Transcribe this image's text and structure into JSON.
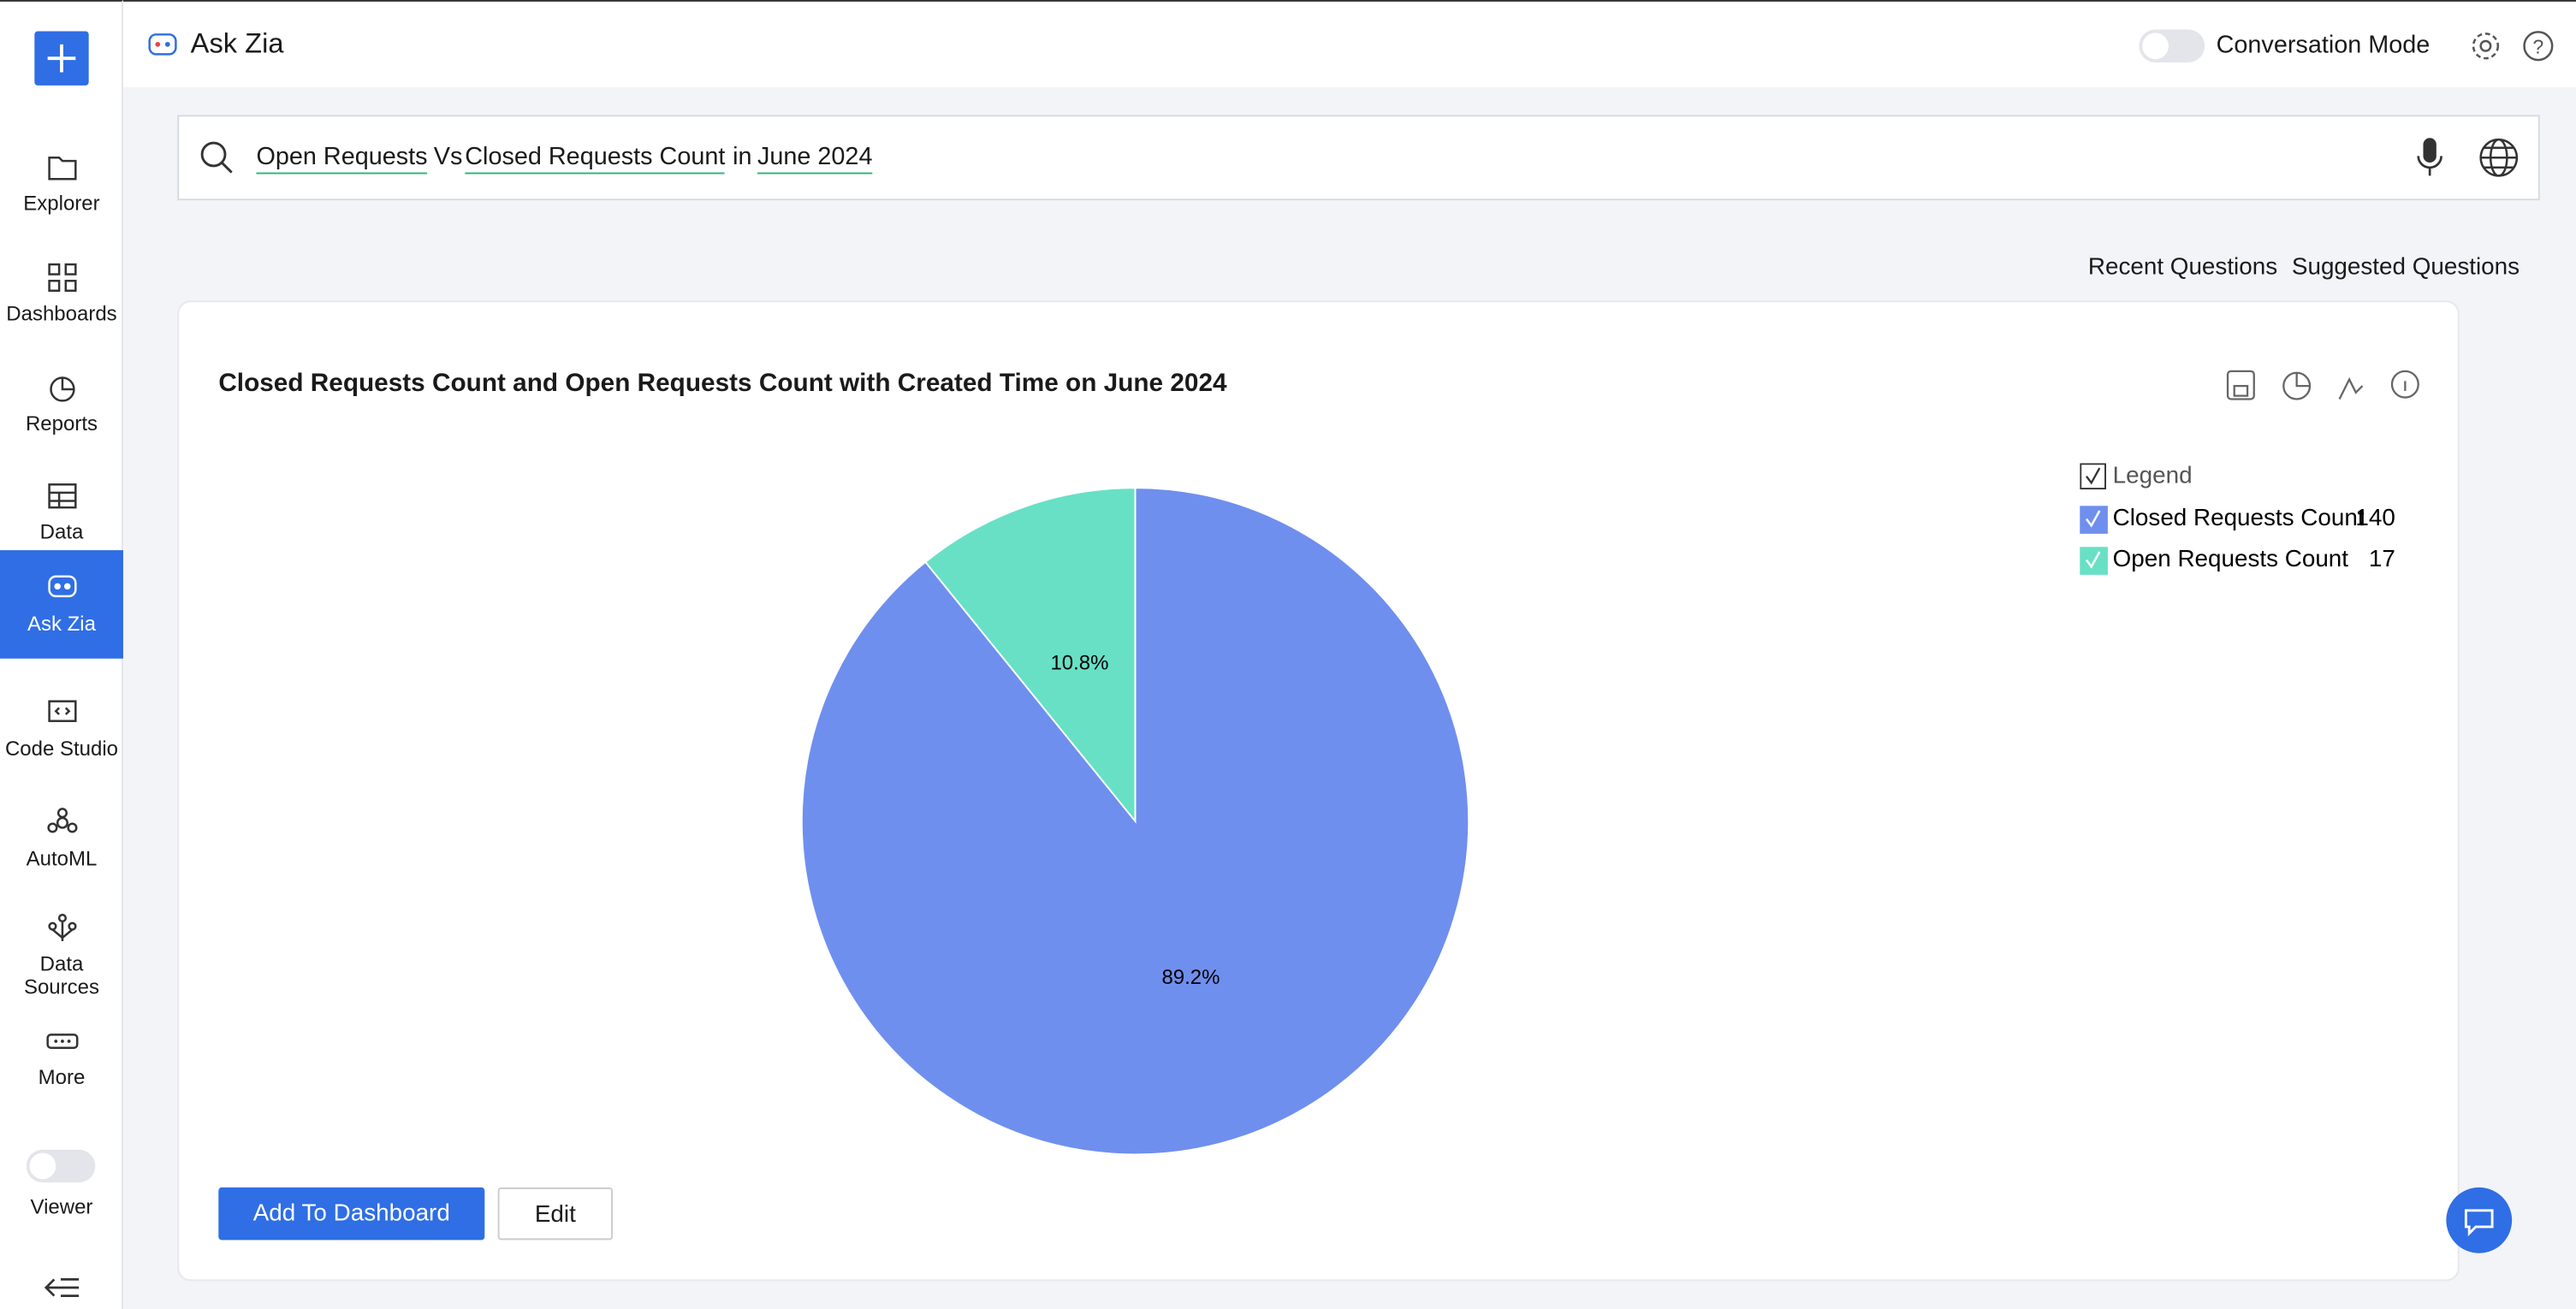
{
  "app": {
    "header_title": "Ask Zia",
    "conversation_mode": "Conversation Mode",
    "nav": [
      "Explorer",
      "Dashboards",
      "Reports",
      "Data",
      "Ask Zia",
      "Code Studio",
      "AutoML",
      "Data Sources",
      "More",
      "Viewer"
    ],
    "query": [
      "Open Requests",
      "Vs",
      "Closed Requests Count",
      "in",
      "June 2024"
    ],
    "tabs": [
      "Recent Questions",
      "Suggested Questions"
    ],
    "buttons": [
      "Add To Dashboard",
      "Edit"
    ]
  },
  "chart_data": {
    "type": "pie",
    "title": "Closed Requests Count and Open Requests Count with Created Time on June 2024",
    "legend_title": "Legend",
    "categories": [
      "Closed Requests Count",
      "Open Requests Count"
    ],
    "values": [
      140,
      17
    ],
    "value_labels": [
      "89.2%",
      "10.8%"
    ],
    "colors": [
      "#6f8fee",
      "#68e0c6"
    ]
  }
}
